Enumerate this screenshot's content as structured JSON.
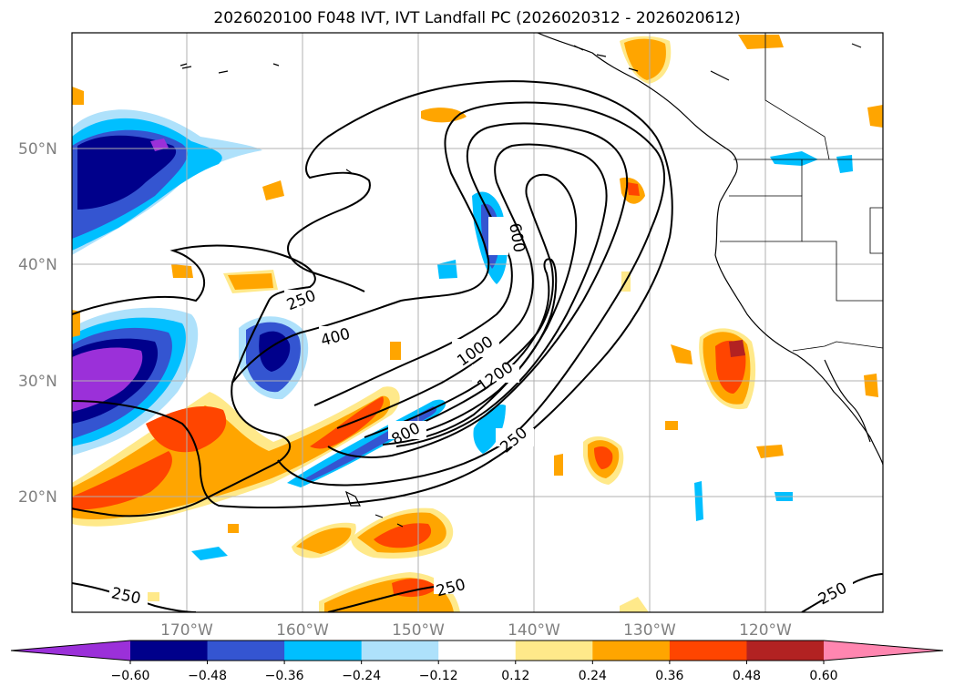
{
  "title": "2026020100 F048 IVT, IVT Landfall PC (2026020312 - 2026020612)",
  "map": {
    "lat_labels": [
      "50°N",
      "40°N",
      "30°N",
      "20°N"
    ],
    "lon_labels": [
      "170°W",
      "160°W",
      "150°W",
      "140°W",
      "130°W",
      "120°W"
    ],
    "contour_labels": [
      "250",
      "400",
      "600",
      "800",
      "1000",
      "1200",
      "250",
      "250",
      "250",
      "250"
    ],
    "gridlines": true
  },
  "colorbar": {
    "ticks": [
      "−0.60",
      "−0.48",
      "−0.36",
      "−0.24",
      "−0.12",
      "0.12",
      "0.24",
      "0.36",
      "0.48",
      "0.60"
    ],
    "colors": [
      "#9b30d9",
      "#00008b",
      "#3455d1",
      "#00bfff",
      "#aee1fb",
      "#ffffff",
      "#ffe98a",
      "#ffa500",
      "#ff4500",
      "#b22222",
      "#ff86b0"
    ]
  }
}
